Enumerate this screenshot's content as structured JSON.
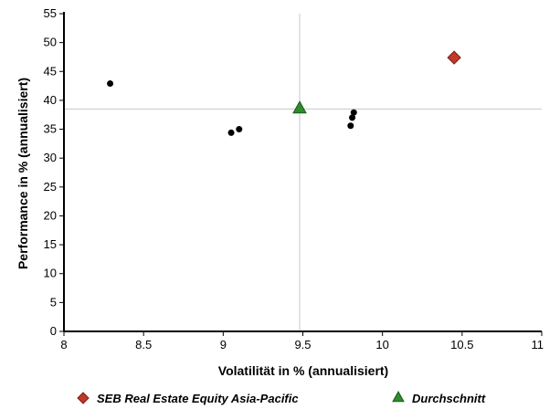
{
  "chart_data": {
    "type": "scatter",
    "xlabel": "Volatilität in % (annualisiert)",
    "ylabel": "Performance in % (annualisiert)",
    "xlim": [
      8,
      11
    ],
    "ylim": [
      0,
      55
    ],
    "x_ticks": [
      "8",
      "8.5",
      "9",
      "9.5",
      "10",
      "10.5",
      "11"
    ],
    "y_ticks": [
      "0",
      "5",
      "10",
      "15",
      "20",
      "25",
      "30",
      "35",
      "40",
      "45",
      "50",
      "55"
    ],
    "grid": false,
    "legend_position": "bottom",
    "reference_lines": {
      "x": 9.48,
      "y": 38.5
    },
    "series": [
      {
        "name": "",
        "marker": "circle",
        "color": "#000000",
        "points": [
          {
            "x": 8.29,
            "y": 42.9
          },
          {
            "x": 9.05,
            "y": 34.4
          },
          {
            "x": 9.1,
            "y": 35.0
          },
          {
            "x": 9.8,
            "y": 35.6
          },
          {
            "x": 9.81,
            "y": 37.0
          },
          {
            "x": 9.82,
            "y": 37.9
          }
        ]
      },
      {
        "name": "SEB Real Estate Equity Asia-Pacific",
        "marker": "diamond",
        "color": "#c0392b",
        "points": [
          {
            "x": 10.45,
            "y": 47.4
          }
        ]
      },
      {
        "name": "Durchschnitt",
        "marker": "triangle",
        "color": "#2e8b2e",
        "points": [
          {
            "x": 9.48,
            "y": 38.7
          }
        ]
      }
    ]
  }
}
